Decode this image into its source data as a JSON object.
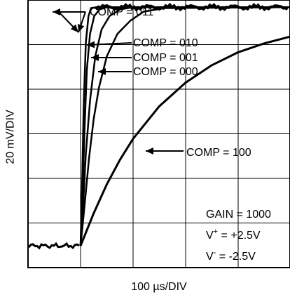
{
  "chart_data": {
    "type": "line",
    "xlabel": "100 µs/DIV",
    "ylabel": "20 mV/DIV",
    "x_divisions": 5,
    "y_divisions": 6,
    "grid": true,
    "step_time_div": 1.0,
    "series": [
      {
        "name": "COMP = 011",
        "color": "#000000",
        "x": [
          0,
          0.03,
          0.06,
          0.1,
          0.15,
          0.2,
          0.3,
          5.0
        ],
        "y": [
          0.05,
          1.5,
          3.2,
          4.6,
          5.2,
          5.38,
          5.4,
          5.4
        ]
      },
      {
        "name": "COMP = 010",
        "color": "#000000",
        "x": [
          0,
          0.04,
          0.08,
          0.12,
          0.18,
          0.26,
          0.36,
          0.5,
          5.0
        ],
        "y": [
          0.05,
          1.3,
          2.8,
          4.0,
          4.8,
          5.2,
          5.35,
          5.4,
          5.4
        ]
      },
      {
        "name": "COMP = 001",
        "color": "#000000",
        "x": [
          0,
          0.05,
          0.1,
          0.18,
          0.28,
          0.4,
          0.55,
          0.75,
          1.0,
          5.0
        ],
        "y": [
          0.05,
          1.0,
          2.1,
          3.3,
          4.3,
          4.9,
          5.2,
          5.35,
          5.4,
          5.4
        ]
      },
      {
        "name": "COMP = 000",
        "color": "#000000",
        "x": [
          0,
          0.08,
          0.16,
          0.25,
          0.35,
          0.5,
          0.7,
          0.95,
          1.2,
          1.6,
          5.0
        ],
        "y": [
          0.05,
          1.0,
          2.0,
          2.9,
          3.6,
          4.3,
          4.8,
          5.1,
          5.3,
          5.38,
          5.4
        ]
      },
      {
        "name": "COMP = 100",
        "color": "#000000",
        "x": [
          0,
          0.25,
          0.5,
          0.75,
          1.0,
          1.5,
          2.0,
          2.5,
          3.0,
          3.5,
          4.0
        ],
        "y": [
          0.05,
          0.78,
          1.43,
          1.98,
          2.45,
          3.18,
          3.71,
          4.1,
          4.39,
          4.59,
          4.74
        ]
      }
    ],
    "baseline_y": 0.05,
    "annotations": [
      {
        "id": "comp011",
        "text": "COMP = 011"
      },
      {
        "id": "comp010",
        "text": "COMP = 010"
      },
      {
        "id": "comp001",
        "text": "COMP = 001"
      },
      {
        "id": "comp000",
        "text": "COMP = 000"
      },
      {
        "id": "comp100",
        "text": "COMP = 100"
      }
    ],
    "conditions": {
      "gain": "GAIN = 1000",
      "vplus_base": "V",
      "vplus_sup": "+",
      "vplus_value": " = +2.5V",
      "vminus_base": "V",
      "vminus_sup": "-",
      "vminus_value": " = -2.5V"
    }
  }
}
